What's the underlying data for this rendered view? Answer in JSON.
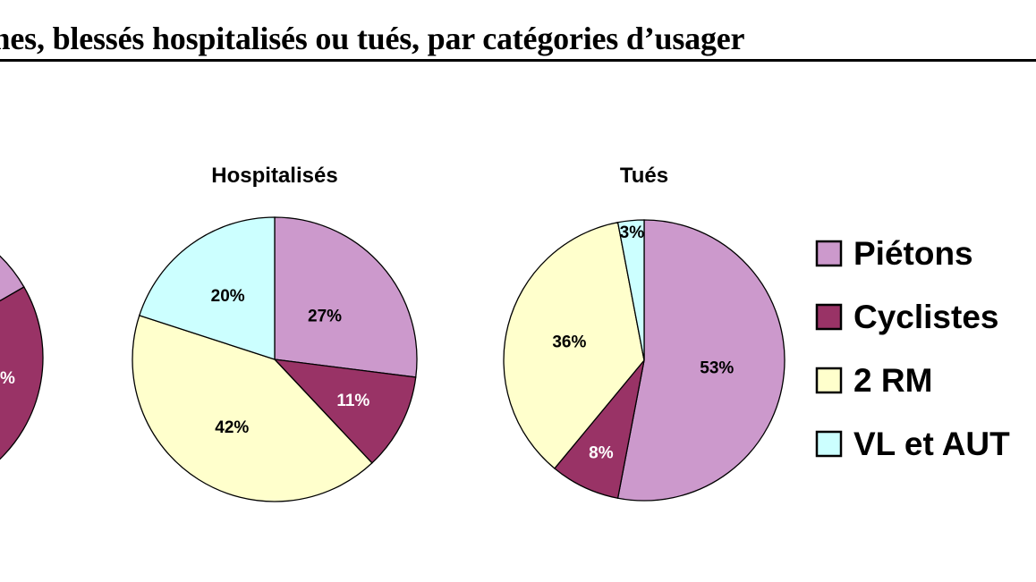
{
  "page": {
    "title": "times, blessés hospitalisés ou tués, par catégories d’usager"
  },
  "legend": {
    "items": [
      {
        "label": "Piétons",
        "color": "#cc99cc"
      },
      {
        "label": "Cyclistes",
        "color": "#993366"
      },
      {
        "label": "2 RM",
        "color": "#ffffcc"
      },
      {
        "label": "VL et AUT",
        "color": "#ccffff"
      }
    ]
  },
  "chart_data": [
    {
      "type": "pie",
      "title": "",
      "categories": [
        "Piétons",
        "Cyclistes",
        "2 RM",
        "VL et AUT"
      ],
      "values": [
        null,
        null,
        null,
        null
      ],
      "note": "partially visible, cropped at left edge"
    },
    {
      "type": "pie",
      "title": "Hospitalisés",
      "categories": [
        "Piétons",
        "Cyclistes",
        "2 RM",
        "VL et AUT"
      ],
      "values": [
        27,
        11,
        42,
        20
      ],
      "labels": [
        "27%",
        "11%",
        "42%",
        "20%"
      ]
    },
    {
      "type": "pie",
      "title": "Tués",
      "categories": [
        "Piétons",
        "Cyclistes",
        "2 RM",
        "VL et AUT"
      ],
      "values": [
        53,
        8,
        36,
        3
      ],
      "labels": [
        "53%",
        "8%",
        "36%",
        "3%"
      ]
    }
  ]
}
